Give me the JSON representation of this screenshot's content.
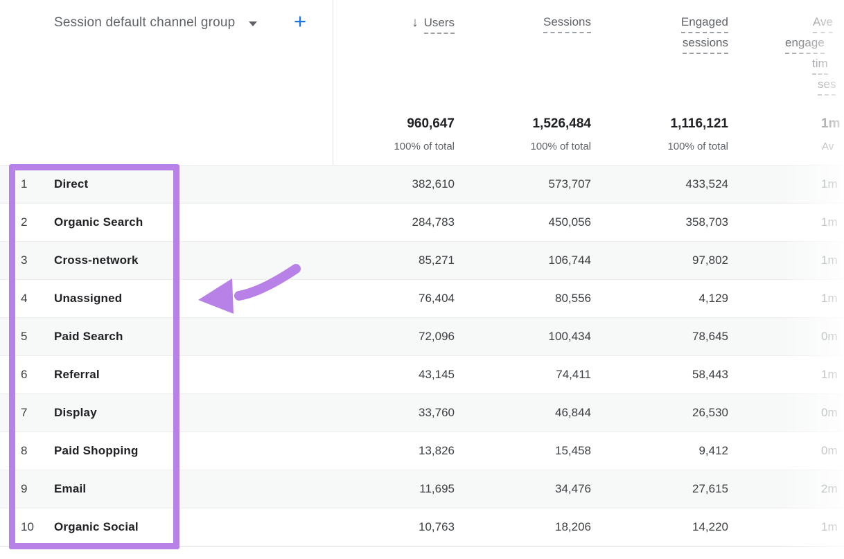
{
  "colors": {
    "annotation_purple": "#b881e7",
    "add_button_blue": "#1a73e8",
    "header_text_gray": "#5f6368",
    "body_text_dark": "#202124",
    "value_text_gray": "#3c4043",
    "row_stripe": "#f7f8f8",
    "divider_gray": "#e0e0e0"
  },
  "icons": {
    "sort_descending": "↓",
    "add": "+",
    "dropdown_caret": "caret-down"
  },
  "table": {
    "dimension": {
      "label": "Session default channel group"
    },
    "columns": [
      {
        "label": "Users",
        "sorted_descending": true,
        "total": "960,647",
        "total_sub": "100% of total"
      },
      {
        "label": "Sessions",
        "total": "1,526,484",
        "total_sub": "100% of total"
      },
      {
        "label": "Engaged sessions",
        "label_lines": [
          "Engaged",
          "sessions"
        ],
        "total": "1,116,121",
        "total_sub": "100% of total"
      },
      {
        "label_fragments": [
          "Ave",
          "engage",
          "tim",
          "ses"
        ],
        "total_fragment": "1m",
        "total_sub_fragment": "Av"
      }
    ],
    "rows": [
      {
        "index": "1",
        "channel": "Direct",
        "users": "382,610",
        "sessions": "573,707",
        "engaged_sessions": "433,524",
        "avg_engagement_time": "1m"
      },
      {
        "index": "2",
        "channel": "Organic Search",
        "users": "284,783",
        "sessions": "450,056",
        "engaged_sessions": "358,703",
        "avg_engagement_time": "1m"
      },
      {
        "index": "3",
        "channel": "Cross-network",
        "users": "85,271",
        "sessions": "106,744",
        "engaged_sessions": "97,802",
        "avg_engagement_time": "1m"
      },
      {
        "index": "4",
        "channel": "Unassigned",
        "users": "76,404",
        "sessions": "80,556",
        "engaged_sessions": "4,129",
        "avg_engagement_time": "1m"
      },
      {
        "index": "5",
        "channel": "Paid Search",
        "users": "72,096",
        "sessions": "100,434",
        "engaged_sessions": "78,645",
        "avg_engagement_time": "0m"
      },
      {
        "index": "6",
        "channel": "Referral",
        "users": "43,145",
        "sessions": "74,411",
        "engaged_sessions": "58,443",
        "avg_engagement_time": "1m"
      },
      {
        "index": "7",
        "channel": "Display",
        "users": "33,760",
        "sessions": "46,844",
        "engaged_sessions": "26,530",
        "avg_engagement_time": "0m"
      },
      {
        "index": "8",
        "channel": "Paid Shopping",
        "users": "13,826",
        "sessions": "15,458",
        "engaged_sessions": "9,412",
        "avg_engagement_time": "0m"
      },
      {
        "index": "9",
        "channel": "Email",
        "users": "11,695",
        "sessions": "34,476",
        "engaged_sessions": "27,615",
        "avg_engagement_time": "2m"
      },
      {
        "index": "10",
        "channel": "Organic Social",
        "users": "10,763",
        "sessions": "18,206",
        "engaged_sessions": "14,220",
        "avg_engagement_time": "1m"
      }
    ]
  },
  "annotations": {
    "highlight_box": {
      "color": "#b881e7",
      "covers": "channel name column rows 1-10"
    },
    "arrow": {
      "color": "#b881e7",
      "direction": "pointing-left at highlighted column"
    }
  }
}
